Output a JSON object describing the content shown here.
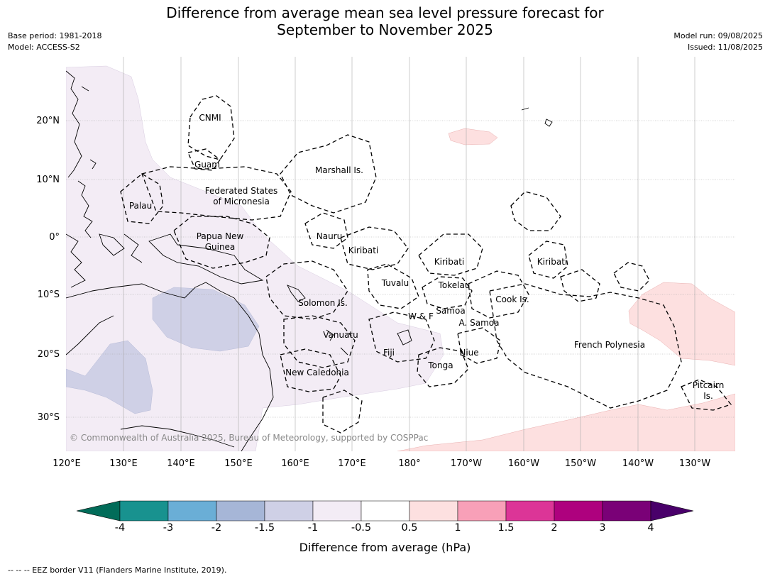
{
  "header": {
    "title_line1": "Difference from average mean sea level pressure forecast for",
    "title_line2": "September to November 2025",
    "base_period": "Base period: 1981-2018",
    "model": "Model: ACCESS-S2",
    "model_run": "Model run: 09/08/2025",
    "issued": "Issued: 11/08/2025"
  },
  "map": {
    "lat_labels": [
      "20°N",
      "10°N",
      "0°",
      "10°S",
      "20°S",
      "30°S"
    ],
    "lon_labels": [
      "120°E",
      "130°E",
      "140°E",
      "150°E",
      "160°E",
      "170°E",
      "180°",
      "170°W",
      "160°W",
      "150°W",
      "140°W",
      "130°W"
    ],
    "regions": [
      {
        "id": "cnmi",
        "text": "CNMI"
      },
      {
        "id": "guam",
        "text": "Guam"
      },
      {
        "id": "marshall",
        "text": "Marshall Is."
      },
      {
        "id": "fsm1",
        "text": "Federated States"
      },
      {
        "id": "fsm2",
        "text": "of Micronesia"
      },
      {
        "id": "palau",
        "text": "Palau"
      },
      {
        "id": "png1",
        "text": "Papua New"
      },
      {
        "id": "png2",
        "text": "Guinea"
      },
      {
        "id": "nauru",
        "text": "Nauru"
      },
      {
        "id": "kiribati1",
        "text": "Kiribati"
      },
      {
        "id": "kiribati2",
        "text": "Kiribati"
      },
      {
        "id": "kiribati3",
        "text": "Kiribati"
      },
      {
        "id": "tuvalu",
        "text": "Tuvalu"
      },
      {
        "id": "tokelau",
        "text": "Tokelau"
      },
      {
        "id": "cook",
        "text": "Cook Is."
      },
      {
        "id": "solomon",
        "text": "Solomon Is."
      },
      {
        "id": "samoa",
        "text": "Samoa"
      },
      {
        "id": "wf",
        "text": "W & F"
      },
      {
        "id": "asamoa",
        "text": "A. Samoa"
      },
      {
        "id": "vanuatu",
        "text": "Vanuatu"
      },
      {
        "id": "fiji",
        "text": "Fiji"
      },
      {
        "id": "niue",
        "text": "Niue"
      },
      {
        "id": "frpoly",
        "text": "French Polynesia"
      },
      {
        "id": "tonga",
        "text": "Tonga"
      },
      {
        "id": "newcal",
        "text": "New Caledonia"
      },
      {
        "id": "pitcairn1",
        "text": "Pitcairn"
      },
      {
        "id": "pitcairn2",
        "text": "Is."
      }
    ],
    "copyright": "© Commonwealth of Australia 2025, Bureau of Meteorology, supported by COSPPac"
  },
  "colorbar": {
    "ticks": [
      "-4",
      "-3",
      "-2",
      "-1.5",
      "-1",
      "-0.5",
      "0.5",
      "1",
      "1.5",
      "2",
      "3",
      "4"
    ],
    "colors": [
      "#18928f",
      "#6aaed6",
      "#a6b6d7",
      "#cfd0e6",
      "#f3ecf5",
      "#ffffff",
      "#fde0e0",
      "#f8a0b8",
      "#dc3597",
      "#ae017e",
      "#7a0177"
    ],
    "under_color": "#016c59",
    "over_color": "#49006a",
    "label": "Difference from average (hPa)"
  },
  "footer": {
    "legend": "--  --  -- EEZ border V11 (Flanders Marine Institute, 2019)."
  }
}
